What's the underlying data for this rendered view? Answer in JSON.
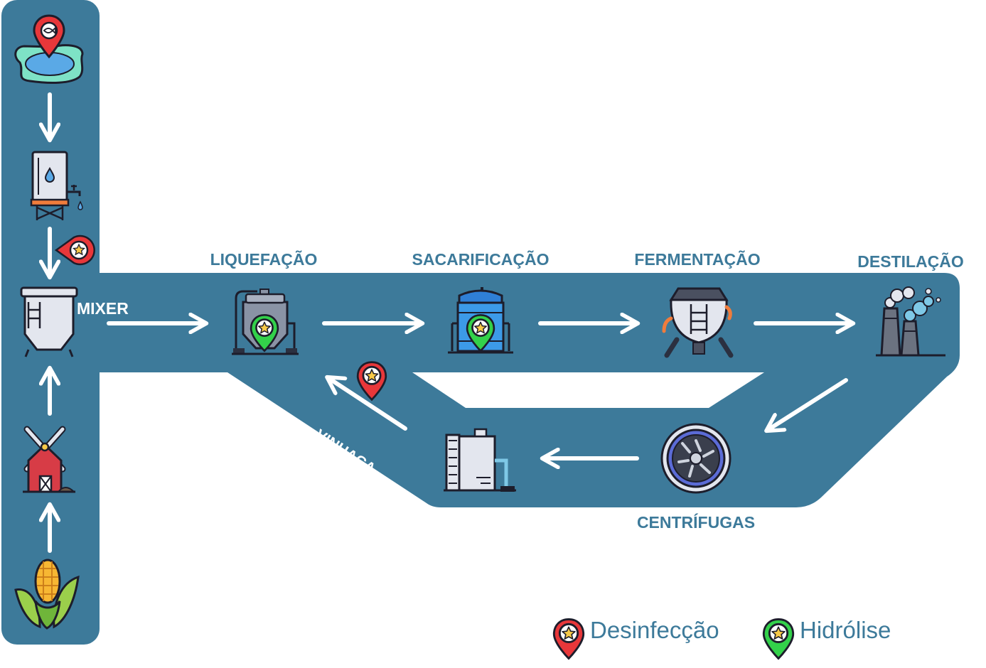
{
  "stages": {
    "mixer": "MIXER",
    "liquefacao": "LIQUEFAÇÃO",
    "sacarificacao": "SACARIFICAÇÃO",
    "fermentacao": "FERMENTAÇÃO",
    "destilacao": "DESTILAÇÃO",
    "centrifugas": "CENTRÍFUGAS",
    "vinhaca": "VINHAÇA"
  },
  "legend": {
    "desinfeccao": "Desinfecção",
    "hidrolise": "Hidrólise"
  },
  "icons": [
    "water-source-pin-icon",
    "water-tank-icon",
    "mixer-tank-icon",
    "windmill-icon",
    "corn-icon",
    "liquefaction-silo-icon",
    "saccharification-tank-icon",
    "fermenter-icon",
    "distillery-icon",
    "centrifuge-icon",
    "vinasse-tank-icon"
  ],
  "colors": {
    "flow_band": "#3d7a9a",
    "label": "#3d7a9a",
    "desinfeccao_pin": "#e8373a",
    "hidrolise_pin": "#33d14a"
  }
}
